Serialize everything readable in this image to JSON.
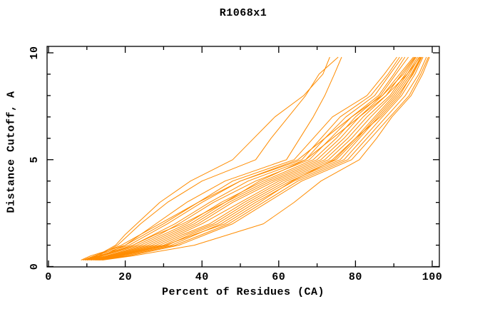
{
  "window": {
    "title": "R1068x1"
  },
  "chart_data": {
    "type": "line",
    "title": "R1068x1",
    "xlabel": "Percent of Residues (CA)",
    "ylabel": "Distance Cutoff, A",
    "xlim": [
      0,
      102
    ],
    "ylim": [
      0,
      10.3
    ],
    "grid": false,
    "legend": "none",
    "line_color": "#ff8c00",
    "frame_color": "#000000",
    "x_ticks_major": [
      0,
      20,
      40,
      60,
      80,
      100
    ],
    "x_ticks_minor": [
      10,
      30,
      50,
      70,
      90
    ],
    "y_ticks_major": [
      0,
      5,
      10
    ],
    "y_ticks_minor": [
      1,
      2,
      3,
      4,
      6,
      7,
      8,
      9
    ],
    "cutoffs": [
      0.3,
      0.5,
      1,
      1.5,
      2,
      3,
      4,
      5,
      6,
      7,
      8,
      9,
      9.8
    ],
    "series": [
      [
        10,
        13,
        18,
        21,
        24,
        31,
        40,
        54,
        58,
        62.5,
        67,
        70.5,
        75.5
      ],
      [
        9.5,
        12.5,
        17.5,
        20,
        23,
        29,
        37,
        48,
        53.5,
        59,
        66.5,
        71.5,
        73.3
      ],
      [
        10,
        14,
        20,
        24,
        28,
        36,
        46,
        62,
        65.5,
        69,
        72,
        74.5,
        76.4
      ],
      [
        8.5,
        11,
        20,
        25,
        30,
        39,
        48,
        64,
        69,
        74,
        83,
        87.5,
        90.8
      ],
      [
        9,
        12,
        21,
        26,
        31,
        40,
        50,
        66,
        71,
        76,
        84,
        88.5,
        91.5
      ],
      [
        9.5,
        13,
        22,
        27.5,
        33,
        42,
        52,
        67,
        72,
        77.5,
        85,
        89,
        92.2
      ],
      [
        10,
        13.5,
        23,
        29,
        34,
        43,
        54,
        68,
        73.5,
        79,
        86,
        90,
        92.9
      ],
      [
        10,
        14,
        24,
        30,
        36,
        45,
        56,
        69,
        75,
        80,
        86.5,
        90.5,
        93.8
      ],
      [
        10.5,
        15,
        25,
        31,
        37,
        46,
        57,
        70,
        76,
        81,
        87,
        91.5,
        95.1
      ],
      [
        11,
        15.5,
        26,
        32,
        38,
        47,
        58,
        71,
        77,
        82,
        88,
        92,
        95.4
      ],
      [
        11,
        16,
        27,
        33,
        39,
        48,
        59,
        72,
        78,
        83,
        89,
        93,
        95.8
      ],
      [
        11.5,
        16.5,
        28,
        34,
        40,
        50,
        60,
        73,
        79,
        84,
        89.5,
        93.5,
        96.2
      ],
      [
        12,
        17,
        29,
        35,
        42,
        51,
        61,
        74,
        80,
        85,
        90,
        94,
        96.6
      ],
      [
        12,
        17.5,
        30,
        36,
        43,
        52,
        62,
        75,
        80.5,
        85.5,
        90.5,
        94.5,
        97
      ],
      [
        12.5,
        18,
        31,
        37,
        44,
        53,
        63,
        76,
        81,
        86,
        91,
        95,
        97.3
      ],
      [
        13,
        19,
        32,
        38.5,
        45,
        54,
        64,
        77,
        82,
        87,
        92,
        95.5,
        97.6
      ],
      [
        13,
        20,
        33,
        40,
        47,
        56,
        65,
        78,
        83,
        88,
        93,
        96.5,
        98.5
      ],
      [
        13.5,
        21,
        34,
        41,
        48,
        57,
        66,
        79,
        84,
        89,
        94,
        97,
        99
      ],
      [
        11,
        14,
        22,
        28,
        35,
        46,
        55,
        67,
        74,
        81,
        88,
        93.5,
        96.8
      ],
      [
        9,
        12,
        19,
        24,
        29,
        39,
        50,
        65,
        72,
        79,
        87,
        92.5,
        95.6
      ],
      [
        12.5,
        18.5,
        30.5,
        38,
        46,
        55,
        63.5,
        74.5,
        80,
        86.5,
        91.5,
        94.8,
        97.1
      ],
      [
        14,
        22,
        38,
        47,
        56,
        64,
        71,
        81,
        85.5,
        89.5,
        94.5,
        97.5,
        99.3
      ]
    ]
  }
}
